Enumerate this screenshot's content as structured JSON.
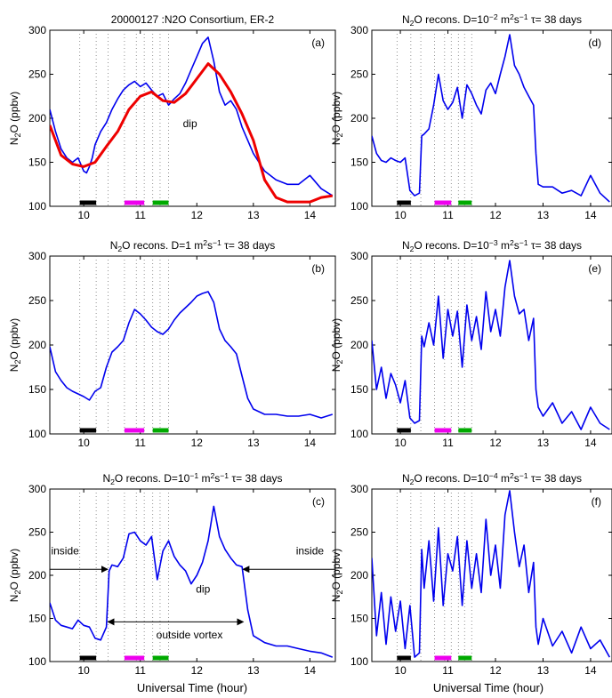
{
  "figure": {
    "xlabel": "Universal Time (hour)",
    "ylabel_main": "N",
    "ylabel_sub": "2",
    "ylabel_rest": "O (ppbv)",
    "trace_color": "#0000ee",
    "fit_color": "#ee0000",
    "segment_colors": [
      "#000000",
      "#ee00ee",
      "#00aa00"
    ],
    "marker_lines": [
      9.93,
      10.22,
      10.43,
      10.72,
      10.93,
      11.07,
      11.22,
      11.35,
      11.5
    ]
  },
  "chart_data": [
    {
      "type": "line",
      "panel": "a",
      "panel_label": "(a)",
      "title": {
        "parts": [
          {
            "t": "20000127  :N2O Consortium, ER-2"
          }
        ]
      },
      "xlim": [
        9.4,
        14.45
      ],
      "ylim": [
        100,
        300
      ],
      "xticks": [
        10,
        11,
        12,
        13,
        14
      ],
      "yticks": [
        100,
        150,
        200,
        250,
        300
      ],
      "show_ylabel": true,
      "show_xlabel": false,
      "series": [
        {
          "role": "observed",
          "x": [
            9.4,
            9.5,
            9.6,
            9.7,
            9.8,
            9.9,
            10.0,
            10.05,
            10.1,
            10.15,
            10.2,
            10.3,
            10.4,
            10.5,
            10.6,
            10.7,
            10.8,
            10.9,
            11.0,
            11.1,
            11.2,
            11.3,
            11.4,
            11.5,
            11.6,
            11.7,
            11.8,
            11.9,
            12.0,
            12.1,
            12.2,
            12.3,
            12.4,
            12.5,
            12.6,
            12.7,
            12.8,
            12.9,
            13.0,
            13.2,
            13.4,
            13.6,
            13.8,
            14.0,
            14.2,
            14.4
          ],
          "y": [
            210,
            185,
            165,
            155,
            150,
            155,
            140,
            138,
            145,
            155,
            170,
            185,
            195,
            210,
            222,
            232,
            238,
            242,
            236,
            240,
            232,
            225,
            228,
            215,
            222,
            228,
            240,
            255,
            270,
            285,
            292,
            265,
            230,
            215,
            220,
            210,
            190,
            175,
            160,
            140,
            130,
            125,
            125,
            135,
            120,
            112
          ]
        },
        {
          "role": "smoothed",
          "x": [
            9.4,
            9.6,
            9.8,
            10.0,
            10.2,
            10.4,
            10.6,
            10.8,
            11.0,
            11.2,
            11.4,
            11.6,
            11.8,
            12.0,
            12.2,
            12.4,
            12.6,
            12.8,
            13.0,
            13.2,
            13.4,
            13.6,
            13.8,
            14.0,
            14.2,
            14.4
          ],
          "y": [
            192,
            158,
            148,
            145,
            150,
            168,
            185,
            210,
            225,
            230,
            220,
            218,
            228,
            245,
            262,
            250,
            230,
            205,
            175,
            130,
            110,
            105,
            105,
            105,
            110,
            112
          ]
        }
      ],
      "annotations": [
        {
          "text": "dip",
          "x": 11.88,
          "y": 190
        }
      ],
      "segments": [
        {
          "x0": 9.93,
          "x1": 10.22
        },
        {
          "x0": 10.72,
          "x1": 11.07
        },
        {
          "x0": 11.22,
          "x1": 11.5
        }
      ]
    },
    {
      "type": "line",
      "panel": "b",
      "panel_label": "(b)",
      "title": {
        "parts": [
          {
            "t": "N"
          },
          {
            "t": "2",
            "s": "sub"
          },
          {
            "t": "O recons. D=1 m"
          },
          {
            "t": "2",
            "s": "sup"
          },
          {
            "t": "s"
          },
          {
            "t": "−1",
            "s": "sup"
          },
          {
            "t": "     τ= 38 days"
          }
        ]
      },
      "xlim": [
        9.4,
        14.45
      ],
      "ylim": [
        100,
        300
      ],
      "xticks": [
        10,
        11,
        12,
        13,
        14
      ],
      "yticks": [
        100,
        150,
        200,
        250,
        300
      ],
      "show_ylabel": true,
      "show_xlabel": false,
      "series": [
        {
          "role": "reconstructed",
          "x": [
            9.4,
            9.5,
            9.6,
            9.7,
            9.8,
            9.9,
            10.0,
            10.1,
            10.2,
            10.3,
            10.4,
            10.5,
            10.6,
            10.7,
            10.8,
            10.9,
            11.0,
            11.1,
            11.2,
            11.3,
            11.4,
            11.5,
            11.6,
            11.7,
            11.8,
            11.9,
            12.0,
            12.1,
            12.2,
            12.3,
            12.4,
            12.5,
            12.6,
            12.7,
            12.8,
            12.9,
            13.0,
            13.2,
            13.4,
            13.6,
            13.8,
            14.0,
            14.2,
            14.4
          ],
          "y": [
            198,
            170,
            160,
            152,
            148,
            145,
            142,
            138,
            148,
            152,
            175,
            192,
            198,
            205,
            225,
            240,
            235,
            228,
            220,
            215,
            212,
            218,
            228,
            236,
            242,
            248,
            255,
            258,
            260,
            248,
            218,
            205,
            198,
            190,
            165,
            140,
            128,
            122,
            122,
            120,
            120,
            122,
            118,
            122
          ]
        }
      ],
      "annotations": [],
      "segments": [
        {
          "x0": 9.93,
          "x1": 10.22
        },
        {
          "x0": 10.72,
          "x1": 11.07
        },
        {
          "x0": 11.22,
          "x1": 11.5
        }
      ]
    },
    {
      "type": "line",
      "panel": "c",
      "panel_label": "(c)",
      "title": {
        "parts": [
          {
            "t": "N"
          },
          {
            "t": "2",
            "s": "sub"
          },
          {
            "t": "O recons. D=10"
          },
          {
            "t": "−1",
            "s": "sup"
          },
          {
            "t": " m"
          },
          {
            "t": "2",
            "s": "sup"
          },
          {
            "t": "s"
          },
          {
            "t": "−1",
            "s": "sup"
          },
          {
            "t": "     τ= 38 days"
          }
        ]
      },
      "xlim": [
        9.4,
        14.45
      ],
      "ylim": [
        100,
        300
      ],
      "xticks": [
        10,
        11,
        12,
        13,
        14
      ],
      "yticks": [
        100,
        150,
        200,
        250,
        300
      ],
      "show_ylabel": true,
      "show_xlabel": true,
      "series": [
        {
          "role": "reconstructed",
          "x": [
            9.4,
            9.5,
            9.6,
            9.7,
            9.8,
            9.9,
            10.0,
            10.1,
            10.2,
            10.3,
            10.4,
            10.45,
            10.5,
            10.6,
            10.7,
            10.8,
            10.9,
            11.0,
            11.1,
            11.2,
            11.3,
            11.4,
            11.5,
            11.6,
            11.7,
            11.8,
            11.9,
            12.0,
            12.1,
            12.2,
            12.3,
            12.4,
            12.5,
            12.6,
            12.7,
            12.8,
            12.9,
            13.0,
            13.2,
            13.4,
            13.6,
            13.8,
            14.0,
            14.2,
            14.4
          ],
          "y": [
            168,
            148,
            142,
            140,
            138,
            148,
            142,
            140,
            127,
            125,
            140,
            205,
            212,
            210,
            220,
            248,
            250,
            240,
            235,
            245,
            195,
            228,
            240,
            222,
            212,
            205,
            190,
            200,
            215,
            240,
            280,
            245,
            230,
            220,
            212,
            210,
            160,
            130,
            122,
            118,
            118,
            115,
            112,
            110,
            105
          ]
        }
      ],
      "annotations": [
        {
          "text": "inside",
          "x": 9.67,
          "y": 224
        },
        {
          "text": "inside",
          "x": 14.0,
          "y": 224
        },
        {
          "text": "dip",
          "x": 12.11,
          "y": 180
        },
        {
          "text": "outside vortex",
          "x": 11.87,
          "y": 127
        }
      ],
      "arrows": [
        {
          "x0": 9.4,
          "x1": 10.42,
          "y": 207
        },
        {
          "x0": 14.45,
          "x1": 12.82,
          "y": 207
        },
        {
          "x0": 10.43,
          "x1": 12.82,
          "y": 146,
          "both": true
        }
      ],
      "segments": [
        {
          "x0": 9.93,
          "x1": 10.22
        },
        {
          "x0": 10.72,
          "x1": 11.07
        },
        {
          "x0": 11.22,
          "x1": 11.5
        }
      ]
    },
    {
      "type": "line",
      "panel": "d",
      "panel_label": "(d)",
      "title": {
        "parts": [
          {
            "t": "N"
          },
          {
            "t": "2",
            "s": "sub"
          },
          {
            "t": "O recons. D=10"
          },
          {
            "t": "−2",
            "s": "sup"
          },
          {
            "t": " m"
          },
          {
            "t": "2",
            "s": "sup"
          },
          {
            "t": "s"
          },
          {
            "t": "−1",
            "s": "sup"
          },
          {
            "t": "     τ= 38 days"
          }
        ]
      },
      "xlim": [
        9.4,
        14.45
      ],
      "ylim": [
        100,
        300
      ],
      "xticks": [
        10,
        11,
        12,
        13,
        14
      ],
      "yticks": [
        100,
        150,
        200,
        250,
        300
      ],
      "show_ylabel": true,
      "show_xlabel": false,
      "series": [
        {
          "role": "reconstructed",
          "x": [
            9.4,
            9.5,
            9.6,
            9.7,
            9.8,
            9.9,
            10.0,
            10.1,
            10.2,
            10.3,
            10.4,
            10.45,
            10.5,
            10.6,
            10.7,
            10.8,
            10.9,
            11.0,
            11.1,
            11.2,
            11.3,
            11.4,
            11.5,
            11.6,
            11.7,
            11.8,
            11.9,
            12.0,
            12.1,
            12.2,
            12.3,
            12.4,
            12.5,
            12.6,
            12.7,
            12.8,
            12.85,
            12.9,
            13.0,
            13.2,
            13.4,
            13.6,
            13.8,
            14.0,
            14.2,
            14.4
          ],
          "y": [
            180,
            160,
            152,
            150,
            155,
            152,
            150,
            155,
            118,
            112,
            115,
            180,
            182,
            188,
            215,
            250,
            220,
            210,
            218,
            235,
            200,
            238,
            228,
            215,
            205,
            232,
            240,
            228,
            250,
            270,
            295,
            260,
            250,
            235,
            225,
            215,
            160,
            125,
            122,
            122,
            115,
            118,
            112,
            135,
            115,
            105
          ]
        }
      ],
      "annotations": [],
      "segments": [
        {
          "x0": 9.93,
          "x1": 10.22
        },
        {
          "x0": 10.72,
          "x1": 11.07
        },
        {
          "x0": 11.22,
          "x1": 11.5
        }
      ]
    },
    {
      "type": "line",
      "panel": "e",
      "panel_label": "(e)",
      "title": {
        "parts": [
          {
            "t": "N"
          },
          {
            "t": "2",
            "s": "sub"
          },
          {
            "t": "O recons. D=10"
          },
          {
            "t": "−3",
            "s": "sup"
          },
          {
            "t": " m"
          },
          {
            "t": "2",
            "s": "sup"
          },
          {
            "t": "s"
          },
          {
            "t": "−1",
            "s": "sup"
          },
          {
            "t": "     τ= 38 days"
          }
        ]
      },
      "xlim": [
        9.4,
        14.45
      ],
      "ylim": [
        100,
        300
      ],
      "xticks": [
        10,
        11,
        12,
        13,
        14
      ],
      "yticks": [
        100,
        150,
        200,
        250,
        300
      ],
      "show_ylabel": true,
      "show_xlabel": false,
      "series": [
        {
          "role": "reconstructed",
          "x": [
            9.4,
            9.5,
            9.6,
            9.7,
            9.8,
            9.9,
            10.0,
            10.1,
            10.2,
            10.3,
            10.4,
            10.45,
            10.5,
            10.6,
            10.7,
            10.8,
            10.9,
            11.0,
            11.1,
            11.2,
            11.3,
            11.4,
            11.5,
            11.6,
            11.7,
            11.8,
            11.9,
            12.0,
            12.1,
            12.2,
            12.3,
            12.4,
            12.5,
            12.6,
            12.7,
            12.8,
            12.85,
            12.9,
            13.0,
            13.2,
            13.4,
            13.6,
            13.8,
            14.0,
            14.2,
            14.4
          ],
          "y": [
            205,
            150,
            175,
            140,
            168,
            155,
            135,
            160,
            118,
            112,
            115,
            210,
            198,
            225,
            200,
            255,
            185,
            240,
            210,
            238,
            175,
            245,
            205,
            232,
            195,
            260,
            215,
            240,
            210,
            265,
            295,
            255,
            235,
            240,
            205,
            230,
            150,
            130,
            120,
            135,
            112,
            125,
            105,
            130,
            112,
            105
          ]
        }
      ],
      "annotations": [],
      "segments": [
        {
          "x0": 9.93,
          "x1": 10.22
        },
        {
          "x0": 10.72,
          "x1": 11.07
        },
        {
          "x0": 11.22,
          "x1": 11.5
        }
      ]
    },
    {
      "type": "line",
      "panel": "f",
      "panel_label": "(f)",
      "title": {
        "parts": [
          {
            "t": "N"
          },
          {
            "t": "2",
            "s": "sub"
          },
          {
            "t": "O recons. D=10"
          },
          {
            "t": "−4",
            "s": "sup"
          },
          {
            "t": " m"
          },
          {
            "t": "2",
            "s": "sup"
          },
          {
            "t": "s"
          },
          {
            "t": "−1",
            "s": "sup"
          },
          {
            "t": "     τ= 38 days"
          }
        ]
      },
      "xlim": [
        9.4,
        14.45
      ],
      "ylim": [
        100,
        300
      ],
      "xticks": [
        10,
        11,
        12,
        13,
        14
      ],
      "yticks": [
        100,
        150,
        200,
        250,
        300
      ],
      "show_ylabel": true,
      "show_xlabel": true,
      "series": [
        {
          "role": "reconstructed",
          "x": [
            9.4,
            9.5,
            9.6,
            9.7,
            9.8,
            9.9,
            10.0,
            10.1,
            10.2,
            10.3,
            10.4,
            10.45,
            10.5,
            10.6,
            10.7,
            10.8,
            10.9,
            11.0,
            11.1,
            11.2,
            11.3,
            11.4,
            11.5,
            11.6,
            11.7,
            11.8,
            11.9,
            12.0,
            12.1,
            12.2,
            12.3,
            12.4,
            12.5,
            12.6,
            12.7,
            12.8,
            12.85,
            12.9,
            13.0,
            13.2,
            13.4,
            13.6,
            13.8,
            14.0,
            14.2,
            14.4
          ],
          "y": [
            220,
            130,
            180,
            120,
            175,
            135,
            170,
            115,
            165,
            105,
            110,
            230,
            185,
            240,
            170,
            255,
            165,
            225,
            205,
            245,
            165,
            240,
            185,
            225,
            180,
            265,
            200,
            235,
            185,
            270,
            298,
            250,
            210,
            235,
            180,
            215,
            140,
            120,
            150,
            118,
            135,
            110,
            140,
            115,
            125,
            105
          ]
        }
      ],
      "annotations": [],
      "segments": [
        {
          "x0": 9.93,
          "x1": 10.22
        },
        {
          "x0": 10.72,
          "x1": 11.07
        },
        {
          "x0": 11.22,
          "x1": 11.5
        }
      ]
    }
  ]
}
